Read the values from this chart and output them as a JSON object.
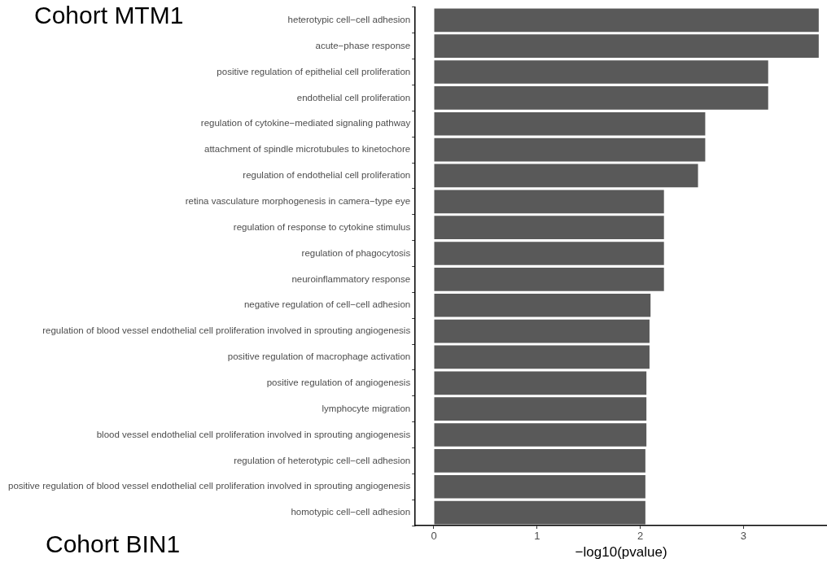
{
  "chart_data": {
    "type": "bar",
    "orientation": "horizontal",
    "title": "Cohort MTM1",
    "xlabel": "−log10(pvalue)",
    "categories": [
      "heterotypic cell−cell adhesion",
      "acute−phase response",
      "positive regulation of epithelial cell proliferation",
      "endothelial cell proliferation",
      "regulation of cytokine−mediated signaling pathway",
      "attachment of spindle microtubules to kinetochore",
      "regulation of endothelial cell proliferation",
      "retina vasculature morphogenesis in camera−type eye",
      "regulation of response to cytokine stimulus",
      "regulation of phagocytosis",
      "neuroinflammatory response",
      "negative regulation of cell−cell adhesion",
      "regulation of blood vessel endothelial cell proliferation involved in sprouting angiogenesis",
      "positive regulation of macrophage activation",
      "positive regulation of angiogenesis",
      "lymphocyte migration",
      "blood vessel endothelial cell proliferation involved in sprouting angiogenesis",
      "regulation of heterotypic cell−cell adhesion",
      "positive regulation of blood vessel endothelial cell proliferation involved in sprouting angiogenesis",
      "homotypic cell−cell adhesion"
    ],
    "values": [
      3.73,
      3.73,
      3.24,
      3.24,
      2.63,
      2.63,
      2.56,
      2.23,
      2.23,
      2.23,
      2.23,
      2.1,
      2.09,
      2.09,
      2.06,
      2.06,
      2.06,
      2.05,
      2.05,
      2.05
    ],
    "color": "#595959",
    "xlim": [
      -0.18,
      3.81
    ],
    "xticks": [
      0,
      1,
      2,
      3
    ],
    "grid": false,
    "legend": false,
    "annotations": [
      "Cohort BIN1"
    ]
  }
}
